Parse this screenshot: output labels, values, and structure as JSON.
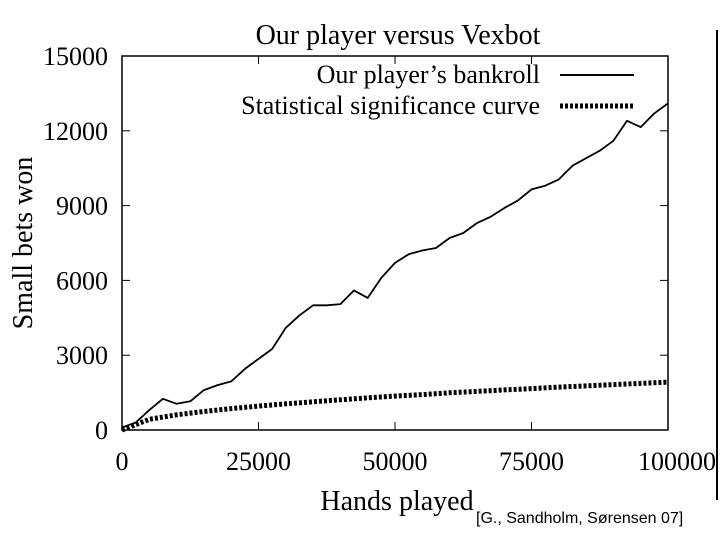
{
  "chart_data": {
    "type": "line",
    "title": "Our player versus Vexbot",
    "xlabel": "Hands played",
    "ylabel": "Small bets won",
    "xlim": [
      0,
      100000
    ],
    "ylim": [
      0,
      15000
    ],
    "x_ticks": [
      "0",
      "25000",
      "50000",
      "75000",
      "100000"
    ],
    "y_ticks": [
      "0",
      "3000",
      "6000",
      "9000",
      "12000",
      "15000"
    ],
    "legend_position": "top-right",
    "grid": false,
    "series": [
      {
        "name": "Our player’s bankroll",
        "style": "solid",
        "color": "#000000",
        "x": [
          0,
          2500,
          5000,
          7500,
          10000,
          12500,
          15000,
          17500,
          20000,
          22500,
          25000,
          27500,
          30000,
          32500,
          35000,
          37500,
          40000,
          42500,
          45000,
          47500,
          50000,
          52500,
          55000,
          57500,
          60000,
          62500,
          65000,
          67500,
          70000,
          72500,
          75000,
          77500,
          80000,
          82500,
          85000,
          87500,
          90000,
          92500,
          95000,
          97500,
          100000
        ],
        "values": [
          100,
          300,
          800,
          1250,
          1050,
          1150,
          1600,
          1800,
          1950,
          2450,
          2850,
          3250,
          4100,
          4600,
          5000,
          5000,
          5050,
          5600,
          5300,
          6100,
          6700,
          7050,
          7200,
          7300,
          7700,
          7900,
          8300,
          8550,
          8900,
          9200,
          9650,
          9800,
          10050,
          10600,
          10900,
          11200,
          11600,
          12400,
          12150,
          12700,
          13100
        ]
      },
      {
        "name": "Statistical significance curve",
        "style": "dashed",
        "color": "#000000",
        "x": [
          0,
          5000,
          10000,
          15000,
          20000,
          25000,
          30000,
          35000,
          40000,
          45000,
          50000,
          55000,
          60000,
          65000,
          70000,
          75000,
          80000,
          85000,
          90000,
          95000,
          100000
        ],
        "values": [
          0,
          430,
          610,
          740,
          860,
          960,
          1050,
          1130,
          1210,
          1290,
          1360,
          1420,
          1490,
          1550,
          1610,
          1660,
          1720,
          1770,
          1820,
          1870,
          1920
        ]
      }
    ]
  },
  "citation": "[G., Sandholm, Sørensen 07]"
}
